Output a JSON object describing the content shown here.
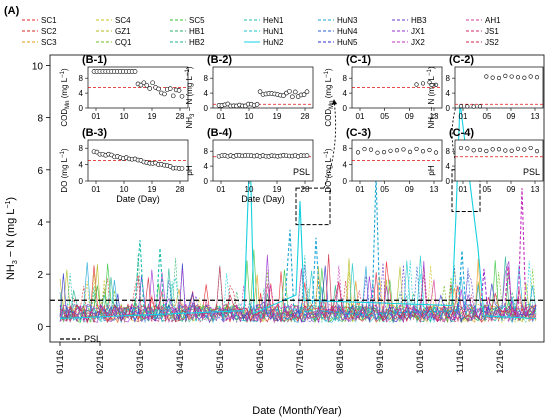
{
  "panel_label": "(A)",
  "legend": [
    {
      "name": "SC1",
      "color": "#e6262a",
      "dash": "3,2"
    },
    {
      "name": "SC2",
      "color": "#d6282a",
      "dash": "3,2"
    },
    {
      "name": "SC3",
      "color": "#e89a16",
      "dash": "3,2"
    },
    {
      "name": "SC4",
      "color": "#c9c21c",
      "dash": "3,2"
    },
    {
      "name": "GZ1",
      "color": "#b3b81e",
      "dash": "3,2"
    },
    {
      "name": "CQ1",
      "color": "#6fbf1e",
      "dash": "3,2"
    },
    {
      "name": "SC5",
      "color": "#35c23a",
      "dash": "3,2"
    },
    {
      "name": "HB1",
      "color": "#2bb36a",
      "dash": "3,2"
    },
    {
      "name": "HB2",
      "color": "#1db38e",
      "dash": "3,2"
    },
    {
      "name": "HeN1",
      "color": "#1dbfae",
      "dash": "3,2"
    },
    {
      "name": "HuN1",
      "color": "#19c6c9",
      "dash": "3,2"
    },
    {
      "name": "HuN2",
      "color": "#14d0e0",
      "dash": ""
    },
    {
      "name": "HuN3",
      "color": "#1aa6d6",
      "dash": "3,2"
    },
    {
      "name": "HuN4",
      "color": "#2a61d4",
      "dash": "3,2"
    },
    {
      "name": "HuN5",
      "color": "#2b2fc9",
      "dash": "3,2"
    },
    {
      "name": "HB3",
      "color": "#6a3ad1",
      "dash": "3,2"
    },
    {
      "name": "JX1",
      "color": "#9a2fcf",
      "dash": "3,2"
    },
    {
      "name": "JX2",
      "color": "#c42fc0",
      "dash": "3,2"
    },
    {
      "name": "AH1",
      "color": "#d43a9a",
      "dash": "3,2"
    },
    {
      "name": "JS1",
      "color": "#d32a6a",
      "dash": "3,2"
    },
    {
      "name": "JS2",
      "color": "#cf2540",
      "dash": "3,2"
    }
  ],
  "chart_data": {
    "type": "line",
    "xlabel": "Date (Month/Year)",
    "ylabel_main": "NH",
    "ylabel_sub": "3",
    "ylabel_rest": " − N (mg L",
    "ylabel_sup": "−1",
    "ylabel_end": ")",
    "x_ticks": [
      "01/16",
      "02/16",
      "03/16",
      "04/16",
      "05/16",
      "06/16",
      "07/16",
      "08/16",
      "09/16",
      "10/16",
      "11/16",
      "12/16"
    ],
    "y_ticks": [
      0,
      2,
      4,
      6,
      8,
      10
    ],
    "ylim": [
      -0.6,
      10.4
    ],
    "psl_value": 1.0,
    "psl_label": "PSL",
    "series_peaks": [
      {
        "name": "HuN2",
        "points": [
          [
            0.0,
            0.3
          ],
          [
            4.6,
            0.6
          ],
          [
            4.75,
            6.9
          ],
          [
            4.85,
            0.5
          ],
          [
            5.9,
            1.2
          ],
          [
            6.0,
            4.8
          ],
          [
            6.1,
            1.0
          ],
          [
            9.8,
            0.8
          ],
          [
            9.9,
            4.3
          ],
          [
            10.0,
            8.6
          ],
          [
            10.45,
            3.0
          ],
          [
            10.6,
            0.4
          ],
          [
            11.9,
            0.3
          ]
        ]
      },
      {
        "name": "HuN3",
        "points": [
          [
            5.6,
            0.4
          ],
          [
            5.75,
            3.7
          ],
          [
            5.85,
            0.5
          ],
          [
            6.3,
            0.6
          ],
          [
            6.4,
            3.4
          ],
          [
            6.5,
            0.6
          ],
          [
            7.8,
            0.4
          ],
          [
            7.9,
            5.8
          ],
          [
            8.0,
            0.5
          ],
          [
            9.95,
            0.6
          ],
          [
            10.05,
            2.9
          ],
          [
            10.15,
            0.5
          ]
        ]
      },
      {
        "name": "HeN1",
        "points": [
          [
            1.85,
            0.4
          ],
          [
            2.0,
            3.3
          ],
          [
            2.1,
            0.6
          ],
          [
            2.4,
            0.5
          ],
          [
            2.5,
            3.0
          ],
          [
            2.6,
            0.5
          ]
        ]
      },
      {
        "name": "JX2",
        "points": [
          [
            11.1,
            0.4
          ],
          [
            11.2,
            2.3
          ],
          [
            11.3,
            0.6
          ],
          [
            11.45,
            0.5
          ],
          [
            11.55,
            5.3
          ],
          [
            11.65,
            0.4
          ]
        ]
      },
      {
        "name": "JX1",
        "points": [
          [
            10.5,
            0.4
          ],
          [
            10.6,
            2.2
          ],
          [
            10.7,
            0.4
          ]
        ]
      }
    ],
    "insets": [
      {
        "label": "(B-1)",
        "ylabel": "COD",
        "ysub": "Mn",
        "yunit": " (mg L",
        "yticks": [
          0,
          4,
          8
        ],
        "xticks": [
          "01",
          "07",
          "13",
          "19",
          "25",
          "31"
        ],
        "xtick_text": [
          "01",
          "10",
          "19",
          "28"
        ],
        "ref": 5.5,
        "ylim": [
          0,
          11
        ]
      },
      {
        "label": "(B-2)",
        "ylabel": "NH",
        "ysub": "3",
        "yunit": " − N (mg L",
        "yticks": [
          0,
          4,
          8
        ],
        "xticks": [],
        "xtick_text": [
          "01",
          "10",
          "19",
          "28"
        ],
        "ref": 1.0,
        "ylim": [
          0,
          11
        ]
      },
      {
        "label": "(B-3)",
        "ylabel": "DO",
        "ysub": "",
        "yunit": " (mg L",
        "yticks": [
          0,
          4,
          8
        ],
        "xticks": [],
        "xtick_text": [
          "01",
          "10",
          "19",
          "28"
        ],
        "ref": 5.0,
        "ylim": [
          0,
          10
        ]
      },
      {
        "label": "(B-4)",
        "ylabel": "pH",
        "ysub": "",
        "yunit": "",
        "yticks": [
          0,
          4,
          8
        ],
        "xticks": [],
        "xtick_text": [
          "01",
          "10",
          "19",
          "28"
        ],
        "ref": 6.5,
        "ylim": [
          0,
          11
        ],
        "psl": "PSL"
      },
      {
        "label": "(C-1)",
        "ylabel": "COD",
        "ysub": "Mn",
        "yunit": " (mg L",
        "yticks": [
          0,
          4,
          8
        ],
        "xticks": [],
        "xtick_text": [
          "01",
          "05",
          "09",
          "13"
        ],
        "ref": 5.5,
        "ylim": [
          0,
          11
        ]
      },
      {
        "label": "(C-2)",
        "ylabel": "NH",
        "ysub": "3",
        "yunit": " − N (mg L",
        "yticks": [
          0,
          4,
          8
        ],
        "xticks": [],
        "xtick_text": [
          "01",
          "05",
          "09",
          "13"
        ],
        "ref": 1.0,
        "ylim": [
          0,
          11
        ]
      },
      {
        "label": "(C-3)",
        "ylabel": "DO",
        "ysub": "",
        "yunit": " (mg L",
        "yticks": [
          0,
          4,
          8
        ],
        "xticks": [],
        "xtick_text": [
          "01",
          "05",
          "09",
          "13"
        ],
        "ref": 5.0,
        "ylim": [
          0,
          10
        ]
      },
      {
        "label": "(C-4)",
        "ylabel": "pH",
        "ysub": "",
        "yunit": "",
        "yticks": [
          0,
          4,
          8
        ],
        "xticks": [],
        "xtick_text": [
          "01",
          "05",
          "09",
          "13"
        ],
        "ref": 6.5,
        "ylim": [
          0,
          11
        ],
        "psl": "PSL"
      }
    ],
    "inset_xlabel": "Date (Day)"
  }
}
